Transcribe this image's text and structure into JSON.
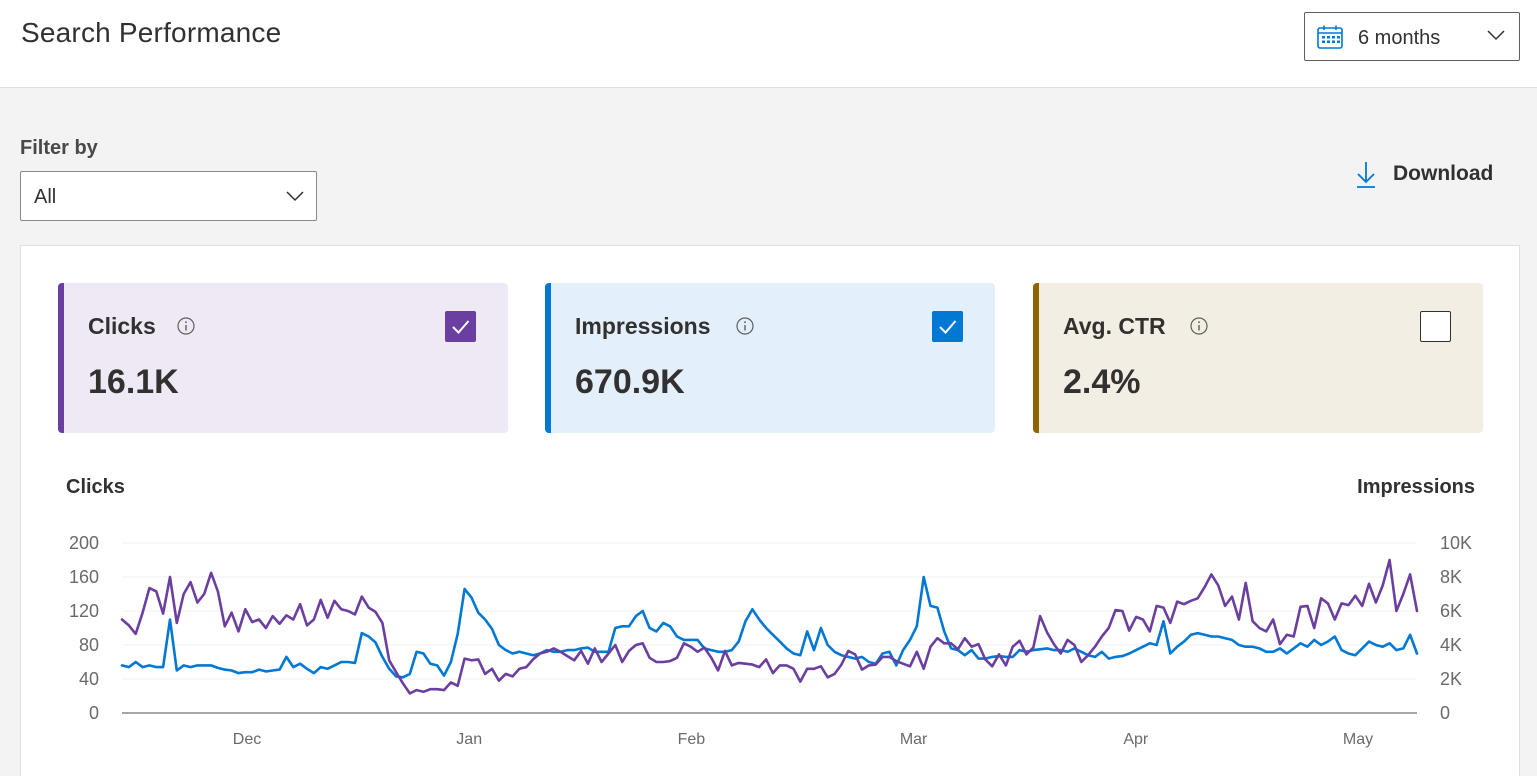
{
  "header": {
    "title": "Search Performance",
    "date_range": "6 months"
  },
  "filter": {
    "label": "Filter by",
    "value": "All"
  },
  "download": {
    "label": "Download"
  },
  "metrics": [
    {
      "name": "Clicks",
      "value": "16.1K",
      "checked": true,
      "accent": "#6b3fa0",
      "background": "#efe9f5"
    },
    {
      "name": "Impressions",
      "value": "670.9K",
      "checked": true,
      "accent": "#0078d4",
      "background": "#e3effa"
    },
    {
      "name": "Avg. CTR",
      "value": "2.4%",
      "checked": false,
      "accent": "#8f6400",
      "background": "#f3eee4"
    }
  ],
  "chart_data": {
    "type": "line",
    "left_axis_title": "Clicks",
    "right_axis_title": "Impressions",
    "x_month_labels": [
      "Dec",
      "Jan",
      "Feb",
      "Mar",
      "Apr",
      "May"
    ],
    "y_left_ticks": [
      "0",
      "40",
      "80",
      "120",
      "160",
      "200"
    ],
    "y_right_ticks": [
      "0",
      "2K",
      "4K",
      "6K",
      "8K",
      "10K"
    ],
    "y_left_range": [
      0,
      200
    ],
    "y_right_range": [
      0,
      10000
    ],
    "grid": true,
    "series": [
      {
        "name": "Clicks",
        "axis": "left",
        "color": "#6b3fa0",
        "values": [
          110,
          103,
          93,
          118,
          147,
          143,
          117,
          160,
          106,
          140,
          154,
          130,
          140,
          165,
          143,
          102,
          118,
          96,
          122,
          107,
          110,
          100,
          114,
          105,
          115,
          110,
          128,
          103,
          110,
          133,
          112,
          132,
          122,
          120,
          116,
          137,
          124,
          119,
          106,
          62,
          48,
          35,
          23,
          27,
          25,
          28,
          28,
          27,
          36,
          32,
          64,
          62,
          63,
          46,
          52,
          38,
          46,
          43,
          52,
          54,
          63,
          70,
          72,
          76,
          72,
          67,
          62,
          73,
          58,
          76,
          60,
          70,
          80,
          60,
          73,
          80,
          82,
          65,
          60,
          60,
          61,
          65,
          82,
          78,
          72,
          77,
          65,
          50,
          73,
          56,
          59,
          58,
          57,
          54,
          63,
          47,
          56,
          56,
          52,
          37,
          52,
          52,
          55,
          42,
          46,
          57,
          73,
          69,
          51,
          56,
          57,
          66,
          66,
          61,
          58,
          55,
          72,
          52,
          78,
          88,
          82,
          82,
          75,
          88,
          78,
          81,
          63,
          55,
          69,
          56,
          78,
          85,
          69,
          77,
          114,
          95,
          81,
          70,
          86,
          80,
          60,
          68,
          78,
          90,
          100,
          121,
          120,
          97,
          113,
          110,
          96,
          126,
          124,
          106,
          131,
          128,
          132,
          135,
          148,
          163,
          150,
          126,
          137,
          110,
          153,
          108,
          100,
          96,
          110,
          81,
          92,
          90,
          125,
          126,
          100,
          135,
          129,
          110,
          129,
          127,
          138,
          126,
          152,
          130,
          150,
          180,
          120,
          140,
          163,
          120
        ]
      },
      {
        "name": "Impressions",
        "axis": "right",
        "color": "#0078d4",
        "values": [
          2800,
          2700,
          3000,
          2700,
          2800,
          2700,
          2700,
          5500,
          2500,
          2800,
          2700,
          2800,
          2800,
          2800,
          2650,
          2550,
          2500,
          2350,
          2400,
          2400,
          2550,
          2450,
          2500,
          2550,
          3300,
          2700,
          2900,
          2600,
          2350,
          2700,
          2600,
          2800,
          3000,
          3000,
          2950,
          4700,
          4500,
          4150,
          3300,
          2600,
          2150,
          2100,
          2300,
          3600,
          3500,
          2900,
          2800,
          2200,
          3000,
          4650,
          7300,
          6800,
          5900,
          5500,
          4950,
          4000,
          3700,
          3500,
          3600,
          3500,
          3400,
          3500,
          3700,
          3600,
          3600,
          3700,
          3700,
          3800,
          3850,
          3600,
          3600,
          3600,
          5000,
          5100,
          5100,
          5700,
          6000,
          5000,
          4800,
          5300,
          5100,
          4500,
          4300,
          4300,
          4300,
          3800,
          3700,
          3600,
          3600,
          3700,
          4200,
          5400,
          6100,
          5500,
          5000,
          4600,
          4200,
          3800,
          3500,
          3400,
          4800,
          3700,
          5000,
          4000,
          3600,
          3400,
          3300,
          3200,
          3300,
          3000,
          2900,
          3500,
          3600,
          2800,
          3700,
          4300,
          5100,
          8000,
          6300,
          6200,
          4800,
          3800,
          3700,
          3400,
          3700,
          3200,
          3200,
          3300,
          3350,
          3300,
          3300,
          3700,
          3600,
          3700,
          3750,
          3800,
          3700,
          3700,
          3600,
          3800,
          3600,
          3400,
          3300,
          3600,
          3200,
          3300,
          3350,
          3500,
          3700,
          3900,
          4100,
          4000,
          5400,
          3500,
          3900,
          4200,
          4600,
          4700,
          4600,
          4500,
          4500,
          4400,
          4300,
          4000,
          3900,
          3900,
          3800,
          3600,
          3600,
          3800,
          3500,
          3800,
          4100,
          3900,
          4300,
          4000,
          4200,
          4500,
          3700,
          3500,
          3400,
          3800,
          4200,
          4000,
          3900,
          4100,
          3700,
          3800,
          4600,
          3500
        ]
      }
    ]
  }
}
